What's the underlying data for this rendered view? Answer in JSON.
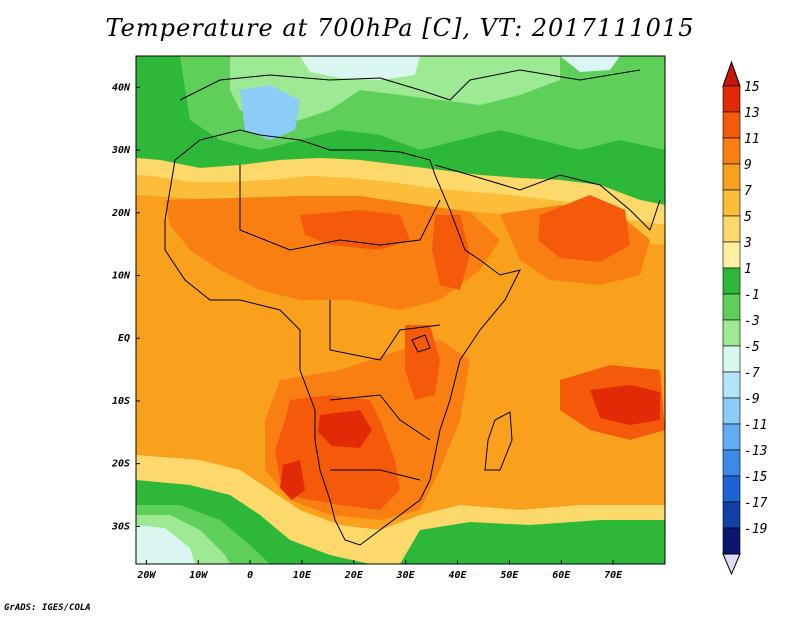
{
  "title": "Temperature at 700hPa [C], VT: 2017111015",
  "credit": "GrADS: IGES/COLA",
  "map": {
    "lat_labels": [
      "40N",
      "30N",
      "20N",
      "10N",
      "EQ",
      "10S",
      "20S",
      "30S"
    ],
    "lon_labels": [
      "20W",
      "10W",
      "0",
      "10E",
      "20E",
      "30E",
      "40E",
      "50E",
      "60E",
      "70E"
    ],
    "lat_range": [
      -36,
      45
    ],
    "lon_range": [
      -22,
      80
    ]
  },
  "colorbar": {
    "labels": [
      "15",
      "13",
      "11",
      "9",
      "7",
      "5",
      "3",
      "1",
      "-1",
      "-3",
      "-5",
      "-7",
      "-9",
      "-11",
      "-13",
      "-15",
      "-17",
      "-19"
    ],
    "colors": [
      "#e32a06",
      "#f55a0a",
      "#f97f12",
      "#f9a11d",
      "#fbbd3a",
      "#fdd86a",
      "#fdf0a0",
      "#2db83a",
      "#5ed05a",
      "#9ee993",
      "#d9f7f0",
      "#b4e4f8",
      "#8ccdf8",
      "#62acf3",
      "#3c8ae8",
      "#1e63d4",
      "#1040a8",
      "#0a1670"
    ],
    "top_arrow_color": "#c81505",
    "bottom_arrow_color": "#dedcf8"
  },
  "palette": {
    "ocean_warm": "#f9a11d",
    "land_hot": "#f97f12",
    "land_very_hot": "#f55a0a",
    "hot_core": "#e32a06",
    "mild": "#fbbd3a",
    "cool": "#fdd86a",
    "green": "#2db83a",
    "lightgreen": "#5ed05a",
    "palegreen": "#9ee993",
    "blue": "#8ccdf8",
    "paleblue": "#d9f7f0"
  }
}
